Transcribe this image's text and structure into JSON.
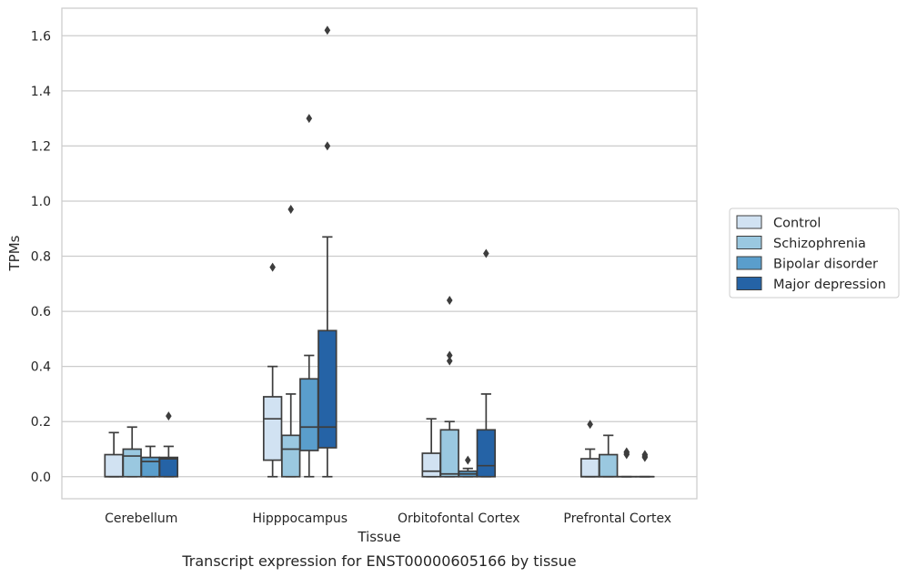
{
  "chart_data": {
    "type": "box",
    "xlabel": "Tissue",
    "ylabel": "TPMs",
    "caption": "Transcript expression for ENST00000605166 by tissue",
    "ylim": [
      -0.08,
      1.7
    ],
    "yticks": [
      0.0,
      0.2,
      0.4,
      0.6,
      0.8,
      1.0,
      1.2,
      1.4,
      1.6
    ],
    "grid": true,
    "legend_position": "right",
    "categories": [
      "Cerebellum",
      "Hipppocampus",
      "Orbitofontal Cortex",
      "Prefrontal Cortex"
    ],
    "series": [
      {
        "name": "Control",
        "color": "#d1e2f2",
        "boxes": [
          {
            "whislo": 0.0,
            "q1": 0.0,
            "med": 0.0,
            "q3": 0.08,
            "whishi": 0.16,
            "fliers": []
          },
          {
            "whislo": 0.0,
            "q1": 0.06,
            "med": 0.21,
            "q3": 0.29,
            "whishi": 0.4,
            "fliers": [
              0.76
            ]
          },
          {
            "whislo": 0.0,
            "q1": 0.0,
            "med": 0.02,
            "q3": 0.085,
            "whishi": 0.21,
            "fliers": []
          },
          {
            "whislo": 0.0,
            "q1": 0.0,
            "med": 0.0,
            "q3": 0.065,
            "whishi": 0.1,
            "fliers": [
              0.19
            ]
          }
        ]
      },
      {
        "name": "Schizophrenia",
        "color": "#9ac8e0",
        "boxes": [
          {
            "whislo": 0.0,
            "q1": 0.0,
            "med": 0.075,
            "q3": 0.1,
            "whishi": 0.18,
            "fliers": []
          },
          {
            "whislo": 0.0,
            "q1": 0.0,
            "med": 0.1,
            "q3": 0.15,
            "whishi": 0.3,
            "fliers": [
              0.97
            ]
          },
          {
            "whislo": 0.0,
            "q1": 0.0,
            "med": 0.01,
            "q3": 0.17,
            "whishi": 0.2,
            "fliers": [
              0.42,
              0.44,
              0.64
            ]
          },
          {
            "whislo": 0.0,
            "q1": 0.0,
            "med": 0.0,
            "q3": 0.08,
            "whishi": 0.15,
            "fliers": []
          }
        ]
      },
      {
        "name": "Bipolar disorder",
        "color": "#5a9ecc",
        "boxes": [
          {
            "whislo": 0.0,
            "q1": 0.0,
            "med": 0.055,
            "q3": 0.07,
            "whishi": 0.11,
            "fliers": []
          },
          {
            "whislo": 0.0,
            "q1": 0.095,
            "med": 0.18,
            "q3": 0.355,
            "whishi": 0.44,
            "fliers": [
              1.3
            ]
          },
          {
            "whislo": 0.0,
            "q1": 0.0,
            "med": 0.01,
            "q3": 0.02,
            "whishi": 0.03,
            "fliers": [
              0.06
            ]
          },
          {
            "whislo": 0.0,
            "q1": 0.0,
            "med": 0.0,
            "q3": 0.0,
            "whishi": 0.0,
            "fliers": [
              0.08,
              0.085,
              0.09
            ]
          }
        ]
      },
      {
        "name": "Major depression",
        "color": "#2563a6",
        "boxes": [
          {
            "whislo": 0.0,
            "q1": 0.0,
            "med": 0.065,
            "q3": 0.07,
            "whishi": 0.11,
            "fliers": [
              0.22
            ]
          },
          {
            "whislo": 0.0,
            "q1": 0.105,
            "med": 0.18,
            "q3": 0.53,
            "whishi": 0.87,
            "fliers": [
              1.2,
              1.62
            ]
          },
          {
            "whislo": 0.0,
            "q1": 0.0,
            "med": 0.04,
            "q3": 0.17,
            "whishi": 0.3,
            "fliers": [
              0.81
            ]
          },
          {
            "whislo": 0.0,
            "q1": 0.0,
            "med": 0.0,
            "q3": 0.0,
            "whishi": 0.0,
            "fliers": [
              0.07,
              0.075,
              0.08
            ]
          }
        ]
      }
    ]
  }
}
